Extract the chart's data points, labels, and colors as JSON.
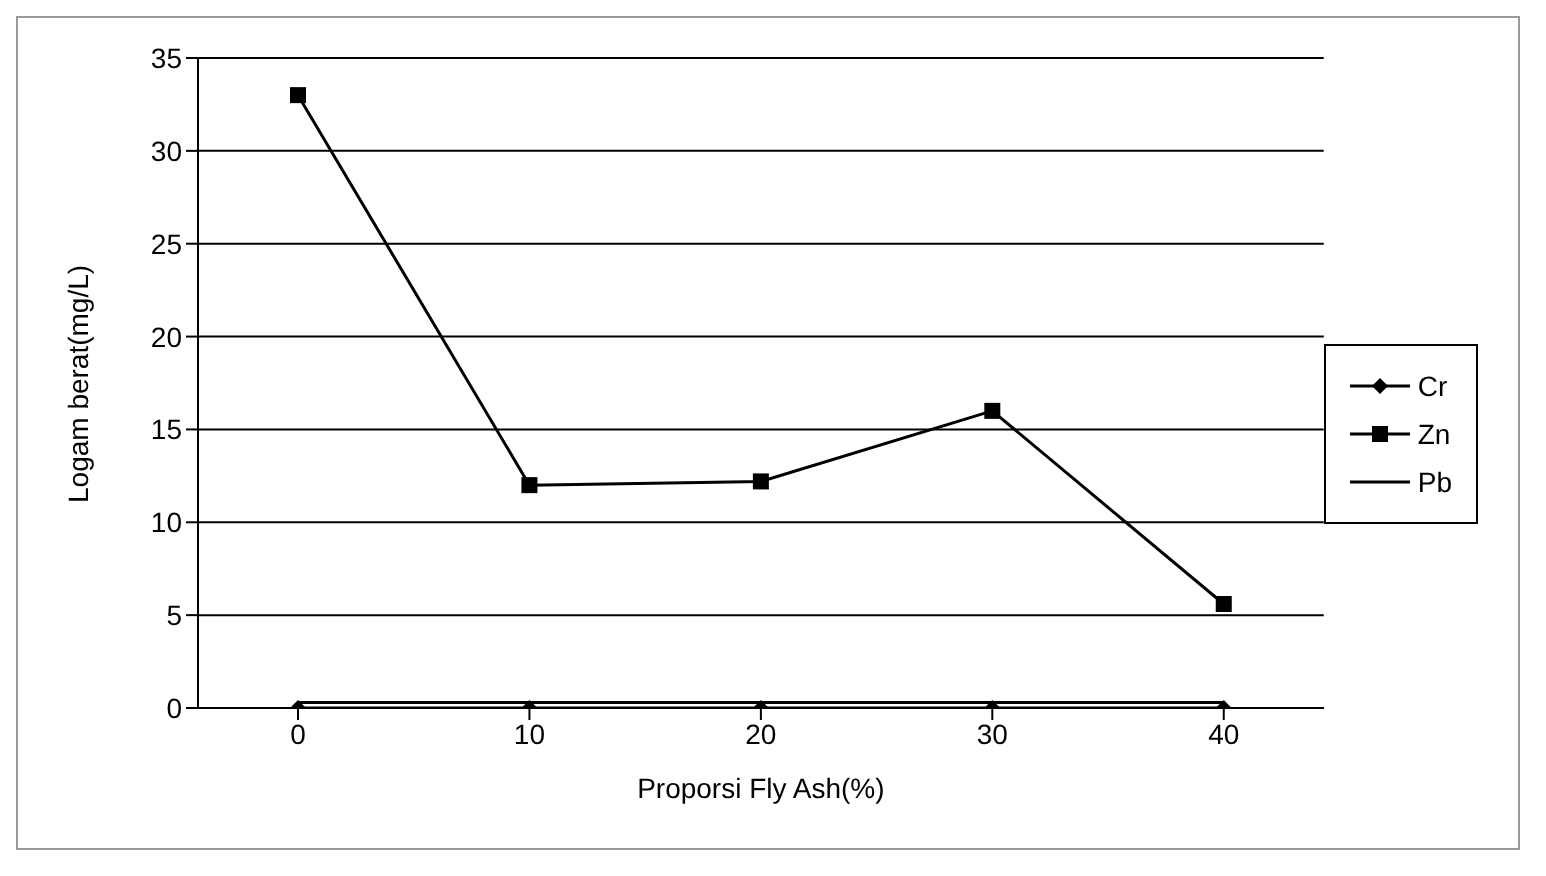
{
  "chart_data": {
    "type": "line",
    "xlabel": "Proporsi Fly Ash(%)",
    "ylabel": "Logam berat(mg/L)",
    "categories": [
      "0",
      "10",
      "20",
      "30",
      "40"
    ],
    "series": [
      {
        "name": "Cr",
        "color": "#000000",
        "marker": "diamond",
        "values": [
          0,
          0,
          0,
          0,
          0
        ]
      },
      {
        "name": "Zn",
        "color": "#000000",
        "marker": "square",
        "values": [
          33,
          12,
          12.2,
          16,
          5.6
        ]
      },
      {
        "name": "Pb",
        "color": "#000000",
        "marker": "none",
        "values": [
          0.3,
          0.3,
          0.3,
          0.3,
          0.3
        ]
      }
    ],
    "ylim": [
      0,
      35
    ],
    "yticks": [
      0,
      5,
      10,
      15,
      20,
      25,
      30,
      35
    ],
    "grid": "y",
    "legend": "right"
  }
}
